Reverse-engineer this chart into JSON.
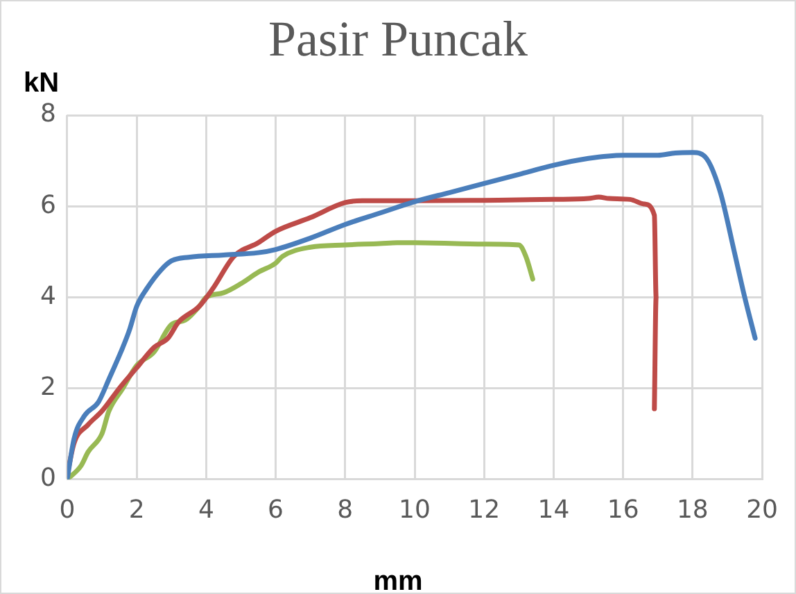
{
  "chart_data": {
    "type": "line",
    "title": "Pasir Puncak",
    "xlabel": "mm",
    "ylabel": "kN",
    "xlim": [
      0,
      20
    ],
    "xticks": [
      0,
      2,
      4,
      6,
      8,
      10,
      12,
      14,
      16,
      18,
      20
    ],
    "ylim": [
      0,
      8
    ],
    "yticks": [
      0,
      2,
      4,
      6,
      8
    ],
    "grid": true,
    "legend": false,
    "marker": "none",
    "line_style": "solid",
    "series": [
      {
        "color": "#4a7ebb",
        "x": [
          0,
          0.2,
          0.5,
          0.9,
          1.2,
          1.6,
          1.8,
          2.0,
          2.3,
          2.7,
          3.0,
          3.5,
          4.5,
          5.5,
          6,
          7,
          8,
          9,
          10,
          11,
          12,
          13,
          14,
          15,
          16,
          17,
          17.5,
          18,
          18.4,
          18.8,
          19.2,
          19.5,
          19.8
        ],
        "values": [
          0,
          0.9,
          1.4,
          1.7,
          2.2,
          2.9,
          3.3,
          3.8,
          4.2,
          4.6,
          4.8,
          4.88,
          4.93,
          4.98,
          5.05,
          5.3,
          5.6,
          5.85,
          6.1,
          6.3,
          6.5,
          6.7,
          6.9,
          7.05,
          7.12,
          7.12,
          7.17,
          7.18,
          7.05,
          6.3,
          5.0,
          4.0,
          3.1
        ]
      },
      {
        "color": "#be4b48",
        "x": [
          0,
          0.2,
          0.6,
          1,
          1.5,
          2,
          2.5,
          2.9,
          3.2,
          3.8,
          4.2,
          4.8,
          5.5,
          6,
          7,
          8,
          8.5,
          10,
          12,
          14,
          15,
          15.3,
          15.6,
          16.2,
          16.6,
          16.9,
          16.95,
          16.9
        ],
        "values": [
          0.1,
          0.8,
          1.2,
          1.5,
          2.0,
          2.45,
          2.9,
          3.1,
          3.45,
          3.8,
          4.2,
          4.9,
          5.2,
          5.45,
          5.75,
          6.08,
          6.12,
          6.12,
          6.13,
          6.15,
          6.17,
          6.2,
          6.17,
          6.15,
          6.05,
          5.8,
          4,
          1.55
        ]
      },
      {
        "color": "#98b954",
        "x": [
          0,
          0.4,
          0.6,
          1.0,
          1.2,
          1.6,
          2.0,
          2.5,
          3,
          3.4,
          3.8,
          4.0,
          4.5,
          5,
          5.5,
          6,
          6.2,
          7,
          8,
          9,
          9.5,
          10,
          12,
          13,
          13.2,
          13.4
        ],
        "values": [
          0,
          0.3,
          0.6,
          1.0,
          1.5,
          2.0,
          2.5,
          2.8,
          3.4,
          3.5,
          3.8,
          4.0,
          4.1,
          4.3,
          4.55,
          4.75,
          4.9,
          5.1,
          5.15,
          5.18,
          5.2,
          5.2,
          5.17,
          5.15,
          4.9,
          4.4
        ]
      }
    ]
  }
}
